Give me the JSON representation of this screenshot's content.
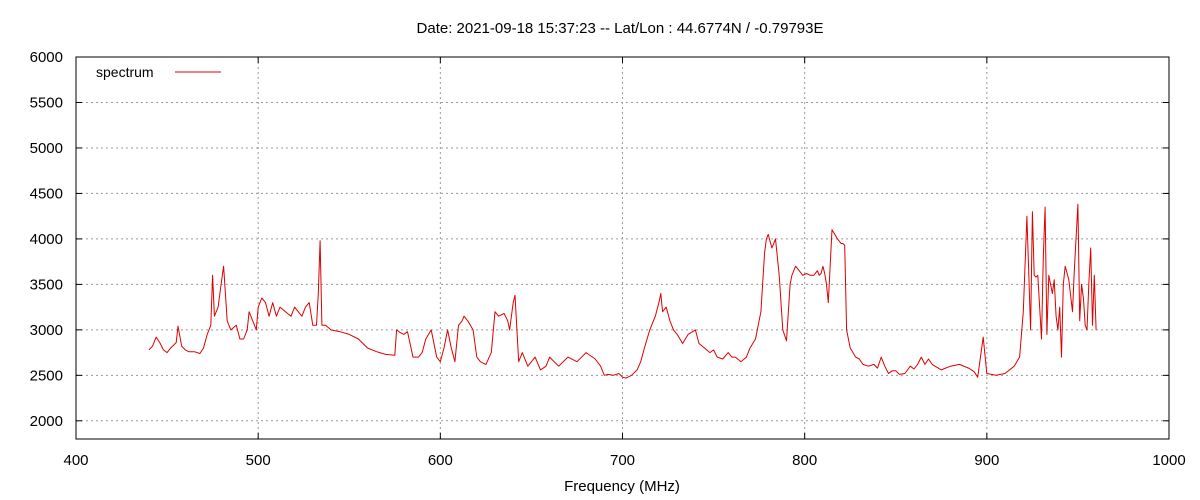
{
  "chart_data": {
    "type": "line",
    "title": "Date: 2021-09-18 15:37:23  --  Lat/Lon : 44.6774N / -0.79793E",
    "xlabel": "Frequency (MHz)",
    "ylabel": "",
    "xlim": [
      400,
      1000
    ],
    "ylim": [
      1800,
      6000
    ],
    "xticks": [
      400,
      500,
      600,
      700,
      800,
      900,
      1000
    ],
    "yticks": [
      2000,
      2500,
      3000,
      3500,
      4000,
      4500,
      5000,
      5500,
      6000
    ],
    "grid": true,
    "legend_position": "top-left",
    "series": [
      {
        "name": "spectrum",
        "color": "#e00000",
        "x": [
          440,
          442,
          444,
          446,
          448,
          450,
          452,
          455,
          456,
          458,
          460,
          462,
          465,
          468,
          470,
          472,
          474,
          475,
          476,
          478,
          480,
          481,
          483,
          485,
          488,
          490,
          492,
          494,
          495,
          497,
          499,
          500,
          502,
          504,
          506,
          508,
          510,
          512,
          515,
          518,
          520,
          522,
          524,
          526,
          528,
          530,
          532,
          533,
          534,
          535,
          537,
          540,
          545,
          550,
          555,
          560,
          565,
          570,
          575,
          576,
          578,
          580,
          582,
          585,
          588,
          590,
          592,
          595,
          598,
          600,
          602,
          604,
          606,
          608,
          610,
          612,
          613,
          615,
          618,
          620,
          622,
          625,
          628,
          630,
          632,
          635,
          637,
          638,
          640,
          641,
          643,
          645,
          648,
          650,
          652,
          655,
          658,
          660,
          665,
          670,
          675,
          680,
          685,
          688,
          690,
          692,
          695,
          698,
          700,
          702,
          705,
          708,
          710,
          712,
          715,
          718,
          720,
          721,
          722,
          724,
          726,
          728,
          730,
          733,
          736,
          740,
          742,
          745,
          748,
          750,
          752,
          755,
          758,
          760,
          762,
          765,
          768,
          770,
          773,
          776,
          778,
          779,
          780,
          782,
          784,
          786,
          788,
          790,
          792,
          793,
          795,
          797,
          799,
          801,
          803,
          805,
          807,
          808,
          809,
          810,
          811,
          812,
          813,
          815,
          818,
          820,
          821,
          822,
          823,
          825,
          828,
          830,
          832,
          835,
          838,
          840,
          842,
          844,
          846,
          848,
          850,
          852,
          855,
          858,
          860,
          862,
          864,
          866,
          868,
          870,
          875,
          880,
          885,
          890,
          893,
          895,
          898,
          900,
          905,
          910,
          915,
          918,
          920,
          922,
          924,
          925,
          926,
          927,
          928,
          930,
          931,
          932,
          933,
          934,
          935,
          936,
          937,
          938,
          939,
          940,
          941,
          942,
          943,
          945,
          947,
          948,
          950,
          951,
          952,
          953,
          954,
          955,
          956,
          957,
          958,
          959,
          960
        ],
        "values": [
          2780,
          2820,
          2920,
          2860,
          2780,
          2750,
          2800,
          2860,
          3040,
          2820,
          2780,
          2760,
          2760,
          2740,
          2800,
          2950,
          3050,
          3600,
          3150,
          3250,
          3550,
          3700,
          3100,
          3000,
          3050,
          2900,
          2900,
          3000,
          3200,
          3100,
          3000,
          3250,
          3350,
          3300,
          3150,
          3300,
          3150,
          3250,
          3200,
          3150,
          3250,
          3200,
          3150,
          3250,
          3300,
          3050,
          3050,
          3400,
          3980,
          3050,
          3050,
          3000,
          2980,
          2950,
          2900,
          2800,
          2760,
          2730,
          2720,
          3000,
          2970,
          2950,
          2980,
          2700,
          2700,
          2750,
          2900,
          3000,
          2700,
          2650,
          2800,
          3000,
          2800,
          2650,
          3050,
          3100,
          3150,
          3100,
          3000,
          2700,
          2650,
          2620,
          2750,
          3200,
          3150,
          3180,
          3100,
          3000,
          3300,
          3380,
          2650,
          2750,
          2600,
          2650,
          2700,
          2560,
          2600,
          2700,
          2600,
          2700,
          2650,
          2750,
          2680,
          2600,
          2500,
          2510,
          2500,
          2520,
          2480,
          2470,
          2500,
          2560,
          2650,
          2800,
          3000,
          3150,
          3300,
          3400,
          3200,
          3250,
          3100,
          3000,
          2950,
          2850,
          2950,
          3000,
          2850,
          2800,
          2750,
          2780,
          2700,
          2680,
          2750,
          2700,
          2700,
          2650,
          2700,
          2800,
          2900,
          3200,
          3850,
          4000,
          4050,
          3900,
          4000,
          3600,
          3000,
          2880,
          3500,
          3600,
          3700,
          3650,
          3600,
          3620,
          3600,
          3600,
          3650,
          3600,
          3620,
          3700,
          3620,
          3500,
          3300,
          4100,
          4000,
          3950,
          3950,
          3930,
          3000,
          2800,
          2700,
          2680,
          2620,
          2600,
          2620,
          2580,
          2700,
          2600,
          2520,
          2550,
          2550,
          2510,
          2520,
          2600,
          2570,
          2620,
          2700,
          2620,
          2680,
          2620,
          2560,
          2600,
          2620,
          2580,
          2540,
          2480,
          2920,
          2520,
          2500,
          2520,
          2600,
          2700,
          3200,
          4250,
          3000,
          4300,
          3600,
          3580,
          3600,
          2900,
          3800,
          4350,
          2950,
          3600,
          3500,
          3400,
          3550,
          3150,
          3000,
          3250,
          2700,
          3500,
          3700,
          3550,
          3200,
          3650,
          4380,
          3100,
          3500,
          3350,
          3050,
          3000,
          3500,
          3900,
          3050,
          3600,
          3000
        ]
      }
    ]
  }
}
